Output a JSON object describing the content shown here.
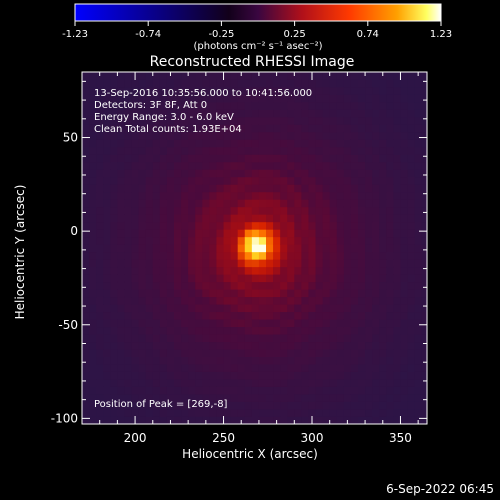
{
  "chart_data": {
    "type": "heatmap",
    "title": "Reconstructed RHESSI Image",
    "xlabel": "Heliocentric X (arcsec)",
    "ylabel": "Heliocentric Y (arcsec)",
    "xlim": [
      170,
      365
    ],
    "ylim": [
      -103,
      85
    ],
    "x_ticks": [
      200,
      250,
      300,
      350
    ],
    "y_ticks": [
      -100,
      -50,
      0,
      50
    ],
    "colorbar": {
      "min": -1.23,
      "max": 1.23,
      "ticks": [
        "-1.23",
        "-0.74",
        "-0.25",
        "0.25",
        "0.74",
        "1.23"
      ],
      "unit_label": "(photons cm⁻² s⁻¹ asec⁻²)",
      "colormap": [
        "#0000ff",
        "#1a0020",
        "#5a0a4a",
        "#b0101a",
        "#ff3000",
        "#ff9e00",
        "#ffff40",
        "#ffffff"
      ]
    },
    "annotations": [
      "13-Sep-2016 10:35:56.000 to 10:41:56.000",
      "Detectors: 3F 8F, Att 0",
      "Energy Range: 3.0 - 6.0 keV",
      "Clean     Total counts: 1.93E+04"
    ],
    "peak": {
      "x": 269,
      "y": -8,
      "label": "Position of Peak = [269,-8]"
    }
  },
  "footer": {
    "date": "6-Sep-2022 06:45"
  }
}
